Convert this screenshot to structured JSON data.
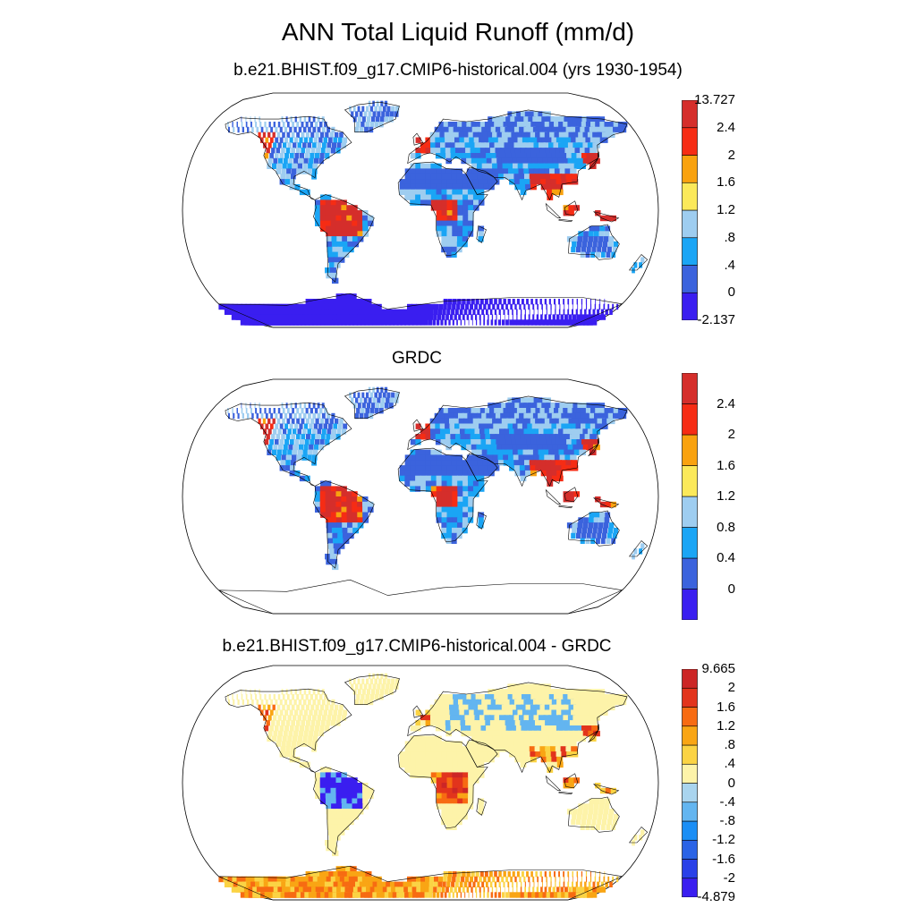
{
  "figure": {
    "title": "ANN Total Liquid Runoff (mm/d)"
  },
  "panels": [
    {
      "subtitle": "b.e21.BHIST.f09_g17.CMIP6-historical.004 (yrs 1930-1954)",
      "colorbar": {
        "colors": [
          "#3a1ef0",
          "#3b63dd",
          "#1aa5f5",
          "#9ecdf0",
          "#fbe95a",
          "#f9a20f",
          "#f62c14",
          "#d52e2b"
        ],
        "labels": [
          "-2.137",
          "0",
          ".4",
          ".8",
          "1.2",
          "1.6",
          "2",
          "2.4",
          "13.727"
        ]
      }
    },
    {
      "subtitle": "GRDC",
      "colorbar": {
        "colors": [
          "#3a1ef0",
          "#3b63dd",
          "#1aa5f5",
          "#9ecdf0",
          "#fbe95a",
          "#f9a20f",
          "#f62c14",
          "#d52e2b"
        ],
        "labels": [
          "0",
          "0.4",
          "0.8",
          "1.2",
          "1.6",
          "2",
          "2.4"
        ]
      }
    },
    {
      "subtitle": "b.e21.BHIST.f09_g17.CMIP6-historical.004 - GRDC",
      "colorbar": {
        "colors": [
          "#3a1ef0",
          "#2940e8",
          "#2a63e6",
          "#1a8ef5",
          "#63b5f0",
          "#a9d4ee",
          "#fdf3a9",
          "#fbd344",
          "#f9a514",
          "#f76b12",
          "#e2341c",
          "#cc2626"
        ],
        "labels": [
          "-4.879",
          "-2",
          "-1.6",
          "-1.2",
          "-.8",
          "-.4",
          "0",
          ".4",
          ".8",
          "1.2",
          "1.6",
          "2",
          "9.665"
        ]
      }
    }
  ]
}
